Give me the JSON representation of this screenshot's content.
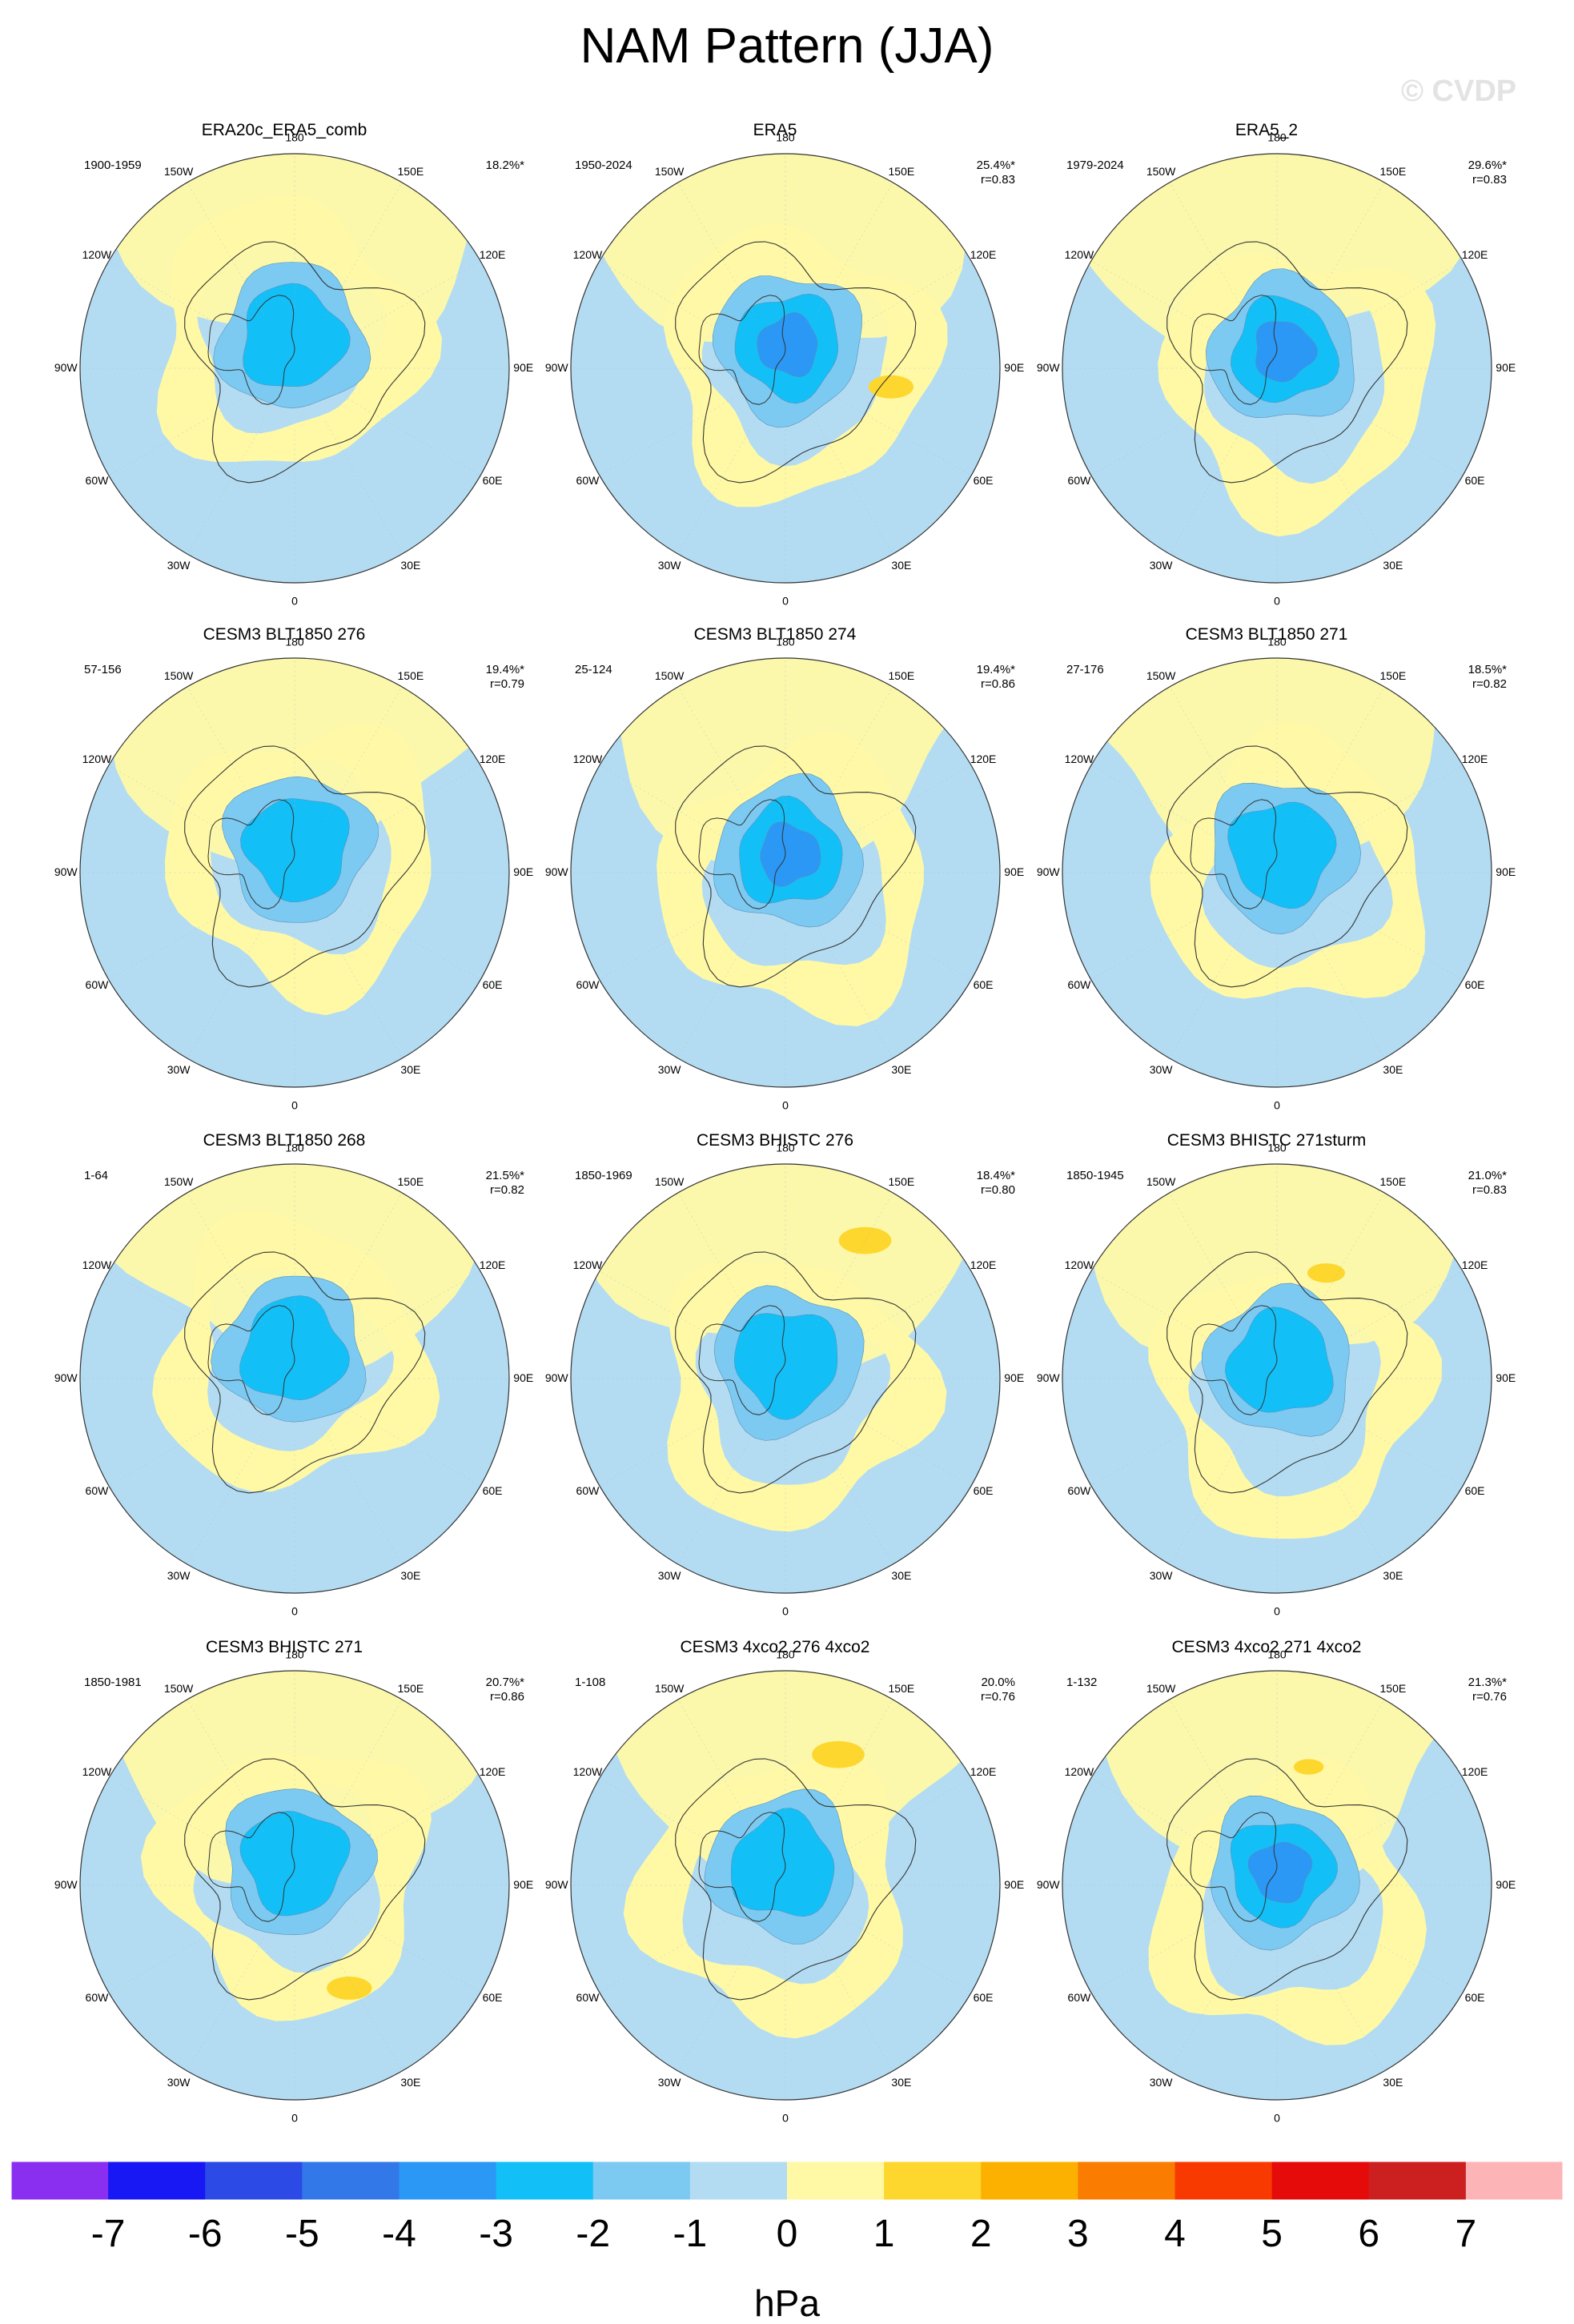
{
  "title": "NAM Pattern (JJA)",
  "watermark": "© CVDP",
  "colors": {
    "background": "#ffffff",
    "coast": "#333333",
    "ocean_base": "#b3dcf2",
    "positive_light": "#fff9a6",
    "positive_medium": "#fdd72e"
  },
  "map_labels": {
    "lon_180": "180",
    "lon_150w": "150W",
    "lon_150e": "150E",
    "lon_120w": "120W",
    "lon_120e": "120E",
    "lon_90w": "90W",
    "lon_90e": "90E",
    "lon_60w": "60W",
    "lon_60e": "60E",
    "lon_30w": "30W",
    "lon_30e": "30E",
    "lon_0": "0"
  },
  "panels": [
    {
      "title": "ERA20c_ERA5_comb",
      "years": "1900-1959",
      "pct": "18.2%*",
      "r": "",
      "min": "-3",
      "shifts": [
        -0.04,
        -0.14
      ],
      "peaks": [],
      "lows": []
    },
    {
      "title": "ERA5",
      "years": "1950-2024",
      "pct": "25.4%*",
      "r": "r=0.83",
      "min": "-5",
      "shifts": [
        0.05,
        -0.02
      ],
      "peaks": [
        [
          55,
          80,
          0.3
        ]
      ],
      "lows": []
    },
    {
      "title": "ERA5_2",
      "years": "1979-2024",
      "pct": "29.6%*",
      "r": "r=0.83",
      "min": "-5",
      "shifts": [
        0.1,
        0.06
      ],
      "peaks": [],
      "lows": []
    },
    {
      "title": "CESM3 BLT1850 276",
      "years": "57-156",
      "pct": "19.4%*",
      "r": "r=0.79",
      "min": "-3",
      "shifts": [
        0.05,
        -0.06
      ],
      "peaks": [],
      "lows": []
    },
    {
      "title": "CESM3 BLT1850 274",
      "years": "25-124",
      "pct": "19.4%*",
      "r": "r=0.86",
      "min": "-4",
      "shifts": [
        0.06,
        0.05
      ],
      "peaks": [],
      "lows": []
    },
    {
      "title": "CESM3 BLT1850 271",
      "years": "27-176",
      "pct": "18.5%*",
      "r": "r=0.82",
      "min": "-3",
      "shifts": [
        0.08,
        0.02
      ],
      "peaks": [],
      "lows": []
    },
    {
      "title": "CESM3 BLT1850 268",
      "years": "1-64",
      "pct": "21.5%*",
      "r": "r=0.82",
      "min": "-3",
      "shifts": [
        -0.02,
        -0.1
      ],
      "peaks": [],
      "lows": []
    },
    {
      "title": "CESM3 BHISTC 276",
      "years": "1850-1969",
      "pct": "18.4%*",
      "r": "r=0.80",
      "min": "-3",
      "shifts": [
        0.02,
        0.06
      ],
      "peaks": [
        [
          38,
          150,
          0.35
        ]
      ],
      "lows": []
    },
    {
      "title": "CESM3 BHISTC 271sturm",
      "years": "1850-1945",
      "pct": "21.0%*",
      "r": "r=0.83",
      "min": "-3",
      "shifts": [
        0.06,
        0.1
      ],
      "peaks": [
        [
          52,
          155,
          0.25
        ]
      ],
      "lows": []
    },
    {
      "title": "CESM3 BHISTC 271",
      "years": "1850-1981",
      "pct": "20.7%*",
      "r": "r=0.86",
      "min": "-3",
      "shifts": [
        0.0,
        -0.04
      ],
      "peaks": [
        [
          52,
          28,
          0.3
        ]
      ],
      "lows": []
    },
    {
      "title": "CESM3 4xco2 276 4xco2",
      "years": "1-108",
      "pct": "20.0%",
      "r": "r=0.76",
      "min": "-3",
      "shifts": [
        -0.04,
        0.04
      ],
      "peaks": [
        [
          44,
          158,
          0.35
        ]
      ],
      "lows": []
    },
    {
      "title": "CESM3 4xco2 271 4xco2",
      "years": "1-132",
      "pct": "21.3%*",
      "r": "r=0.76",
      "min": "-4",
      "shifts": [
        0.06,
        0.12
      ],
      "peaks": [
        [
          50,
          165,
          0.2
        ]
      ],
      "lows": []
    }
  ],
  "colorbar": {
    "unit": "hPa",
    "ticks": [
      "-7",
      "-6",
      "-5",
      "-4",
      "-3",
      "-2",
      "-1",
      "0",
      "1",
      "2",
      "3",
      "4",
      "5",
      "6",
      "7"
    ],
    "colors": [
      "#8a2ef0",
      "#1818f5",
      "#2c4ae6",
      "#3278e8",
      "#2b98f5",
      "#12c0f7",
      "#7ccaf1",
      "#b3dcf2",
      "#fff9a6",
      "#fdd72e",
      "#fcb100",
      "#fa7c00",
      "#f93a00",
      "#e60b0b",
      "#cc2020",
      "#fdb4b7"
    ]
  }
}
